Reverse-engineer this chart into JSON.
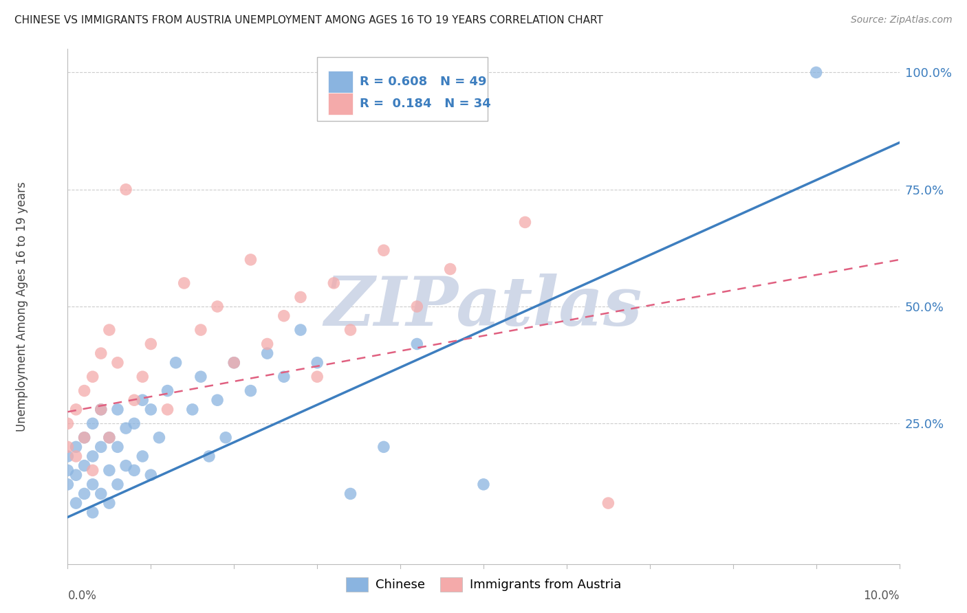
{
  "title": "CHINESE VS IMMIGRANTS FROM AUSTRIA UNEMPLOYMENT AMONG AGES 16 TO 19 YEARS CORRELATION CHART",
  "source": "Source: ZipAtlas.com",
  "ylabel": "Unemployment Among Ages 16 to 19 years",
  "right_yticks": [
    "100.0%",
    "75.0%",
    "50.0%",
    "25.0%"
  ],
  "right_ytick_vals": [
    1.0,
    0.75,
    0.5,
    0.25
  ],
  "legend_blue_r_val": "0.608",
  "legend_blue_n_val": "49",
  "legend_pink_r_val": "0.184",
  "legend_pink_n_val": "34",
  "watermark": "ZIPatlas",
  "blue_color": "#8AB4E0",
  "pink_color": "#F4AAAA",
  "blue_line_color": "#3D7EBF",
  "pink_line_color": "#E06080",
  "watermark_color": "#D0D8E8",
  "background_color": "#FFFFFF",
  "grid_color": "#CCCCCC",
  "xlim": [
    0.0,
    0.1
  ],
  "ylim": [
    -0.05,
    1.05
  ],
  "blue_scatter_x": [
    0.0,
    0.0,
    0.0,
    0.001,
    0.001,
    0.001,
    0.002,
    0.002,
    0.002,
    0.003,
    0.003,
    0.003,
    0.003,
    0.004,
    0.004,
    0.004,
    0.005,
    0.005,
    0.005,
    0.006,
    0.006,
    0.006,
    0.007,
    0.007,
    0.008,
    0.008,
    0.009,
    0.009,
    0.01,
    0.01,
    0.011,
    0.012,
    0.013,
    0.015,
    0.016,
    0.017,
    0.018,
    0.019,
    0.02,
    0.022,
    0.024,
    0.026,
    0.028,
    0.03,
    0.034,
    0.038,
    0.042,
    0.05,
    0.09
  ],
  "blue_scatter_y": [
    0.12,
    0.15,
    0.18,
    0.08,
    0.14,
    0.2,
    0.1,
    0.16,
    0.22,
    0.06,
    0.12,
    0.18,
    0.25,
    0.1,
    0.2,
    0.28,
    0.08,
    0.15,
    0.22,
    0.12,
    0.2,
    0.28,
    0.16,
    0.24,
    0.15,
    0.25,
    0.18,
    0.3,
    0.14,
    0.28,
    0.22,
    0.32,
    0.38,
    0.28,
    0.35,
    0.18,
    0.3,
    0.22,
    0.38,
    0.32,
    0.4,
    0.35,
    0.45,
    0.38,
    0.1,
    0.2,
    0.42,
    0.12,
    1.0
  ],
  "pink_scatter_x": [
    0.0,
    0.0,
    0.001,
    0.001,
    0.002,
    0.002,
    0.003,
    0.003,
    0.004,
    0.004,
    0.005,
    0.005,
    0.006,
    0.007,
    0.008,
    0.009,
    0.01,
    0.012,
    0.014,
    0.016,
    0.018,
    0.02,
    0.022,
    0.024,
    0.026,
    0.028,
    0.03,
    0.032,
    0.034,
    0.038,
    0.042,
    0.046,
    0.055,
    0.065
  ],
  "pink_scatter_y": [
    0.2,
    0.25,
    0.18,
    0.28,
    0.22,
    0.32,
    0.15,
    0.35,
    0.28,
    0.4,
    0.22,
    0.45,
    0.38,
    0.75,
    0.3,
    0.35,
    0.42,
    0.28,
    0.55,
    0.45,
    0.5,
    0.38,
    0.6,
    0.42,
    0.48,
    0.52,
    0.35,
    0.55,
    0.45,
    0.62,
    0.5,
    0.58,
    0.68,
    0.08
  ],
  "blue_line_x0": 0.0,
  "blue_line_y0": 0.05,
  "blue_line_x1": 0.1,
  "blue_line_y1": 0.85,
  "pink_line_x0": 0.0,
  "pink_line_y0": 0.275,
  "pink_line_x1": 0.1,
  "pink_line_y1": 0.6
}
